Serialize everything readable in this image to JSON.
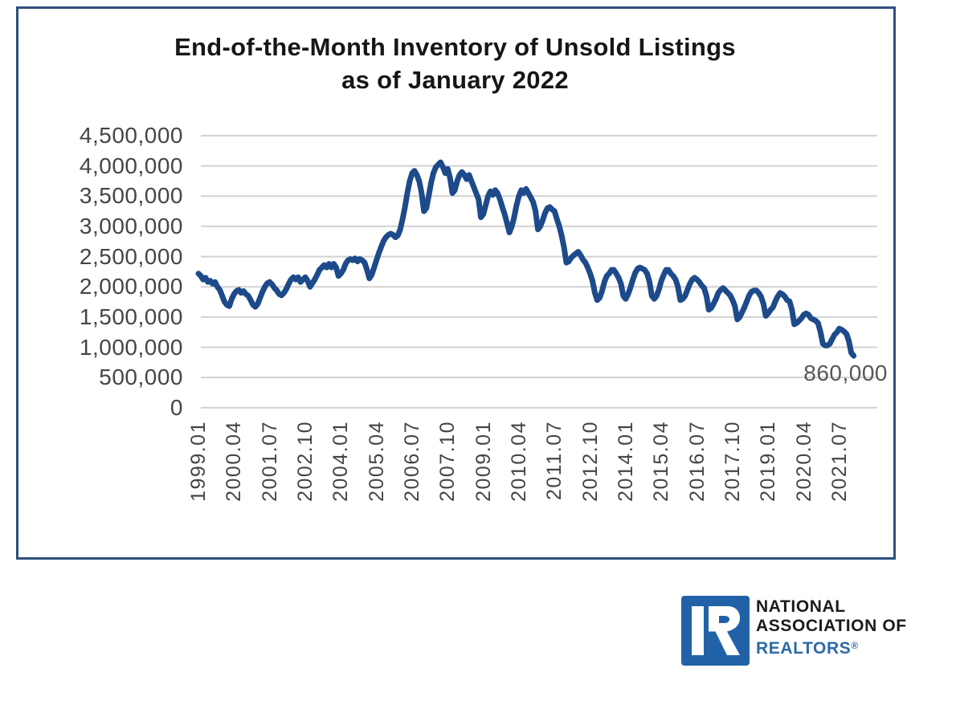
{
  "page": {
    "background": "#ffffff"
  },
  "chart_box": {
    "title_line1": "End-of-the-Month Inventory of Unsold Listings",
    "title_line2": "as of January 2022",
    "border_color": "#2d4f7f"
  },
  "annotation": {
    "text": "860,000",
    "color": "#565656"
  },
  "logo": {
    "line1": "NATIONAL",
    "line2": "ASSOCIATION OF",
    "line3": "REALTORS",
    "registered": "®",
    "square_color": "#2162a7",
    "realtors_color": "#2d6aa6"
  },
  "chart_data": {
    "type": "line",
    "title": "End-of-the-Month Inventory of Unsold Listings as of January 2022",
    "series_name": "End-of-month inventory of unsold listings",
    "x_start": "1999.01",
    "x_end": "2022.01",
    "x_interval": "monthly",
    "x_tick_labels": [
      "1999.01",
      "2000.04",
      "2001.07",
      "2002.10",
      "2004.01",
      "2005.04",
      "2006.07",
      "2007.10",
      "2009.01",
      "2010.04",
      "2011.07",
      "2012.10",
      "2014.01",
      "2015.04",
      "2016.07",
      "2017.10",
      "2019.01",
      "2020.04",
      "2021.07"
    ],
    "x_tick_interval_months": 15,
    "y_tick_labels": [
      "4,500,000",
      "4,000,000",
      "3,500,000",
      "3,000,000",
      "2,500,000",
      "2,000,000",
      "1,500,000",
      "1,000,000",
      "500,000",
      "0"
    ],
    "ylim": [
      0,
      4500000
    ],
    "grid": "horizontal",
    "legend": "none",
    "line_color": "#1d4a8a",
    "last_value_label": "860,000",
    "values": [
      2220000,
      2180000,
      2120000,
      2150000,
      2080000,
      2100000,
      2050000,
      2080000,
      2000000,
      1950000,
      1850000,
      1750000,
      1700000,
      1680000,
      1800000,
      1880000,
      1930000,
      1950000,
      1900000,
      1930000,
      1880000,
      1850000,
      1780000,
      1700000,
      1670000,
      1720000,
      1820000,
      1920000,
      2000000,
      2060000,
      2080000,
      2040000,
      1980000,
      1940000,
      1880000,
      1860000,
      1900000,
      1960000,
      2050000,
      2120000,
      2160000,
      2120000,
      2160000,
      2080000,
      2120000,
      2160000,
      2100000,
      2000000,
      2060000,
      2120000,
      2200000,
      2280000,
      2320000,
      2360000,
      2320000,
      2380000,
      2320000,
      2380000,
      2320000,
      2180000,
      2220000,
      2280000,
      2380000,
      2440000,
      2460000,
      2440000,
      2470000,
      2420000,
      2460000,
      2440000,
      2400000,
      2280000,
      2140000,
      2200000,
      2320000,
      2440000,
      2560000,
      2660000,
      2760000,
      2820000,
      2860000,
      2880000,
      2860000,
      2820000,
      2850000,
      2950000,
      3120000,
      3320000,
      3550000,
      3750000,
      3880000,
      3920000,
      3850000,
      3750000,
      3550000,
      3250000,
      3300000,
      3500000,
      3720000,
      3880000,
      3980000,
      4020000,
      4060000,
      3980000,
      3880000,
      3950000,
      3800000,
      3550000,
      3600000,
      3750000,
      3850000,
      3900000,
      3850000,
      3780000,
      3850000,
      3750000,
      3650000,
      3550000,
      3450000,
      3150000,
      3200000,
      3350000,
      3500000,
      3580000,
      3520000,
      3600000,
      3550000,
      3450000,
      3320000,
      3200000,
      3050000,
      2900000,
      3000000,
      3150000,
      3350000,
      3500000,
      3600000,
      3550000,
      3620000,
      3550000,
      3480000,
      3400000,
      3250000,
      2950000,
      3000000,
      3100000,
      3220000,
      3300000,
      3320000,
      3280000,
      3250000,
      3120000,
      3000000,
      2850000,
      2650000,
      2400000,
      2420000,
      2480000,
      2520000,
      2550000,
      2580000,
      2520000,
      2450000,
      2400000,
      2320000,
      2220000,
      2100000,
      1900000,
      1780000,
      1820000,
      1930000,
      2080000,
      2180000,
      2220000,
      2280000,
      2280000,
      2220000,
      2150000,
      2050000,
      1850000,
      1800000,
      1880000,
      1990000,
      2120000,
      2230000,
      2300000,
      2320000,
      2300000,
      2280000,
      2220000,
      2080000,
      1850000,
      1800000,
      1850000,
      1960000,
      2100000,
      2200000,
      2280000,
      2280000,
      2220000,
      2180000,
      2120000,
      2000000,
      1780000,
      1800000,
      1850000,
      1950000,
      2050000,
      2120000,
      2150000,
      2120000,
      2080000,
      2020000,
      1980000,
      1850000,
      1620000,
      1650000,
      1720000,
      1800000,
      1900000,
      1950000,
      1980000,
      1940000,
      1900000,
      1860000,
      1780000,
      1680000,
      1460000,
      1500000,
      1580000,
      1660000,
      1760000,
      1860000,
      1920000,
      1940000,
      1940000,
      1900000,
      1840000,
      1720000,
      1520000,
      1560000,
      1620000,
      1660000,
      1760000,
      1840000,
      1900000,
      1880000,
      1840000,
      1780000,
      1760000,
      1620000,
      1380000,
      1400000,
      1440000,
      1480000,
      1540000,
      1560000,
      1540000,
      1480000,
      1460000,
      1440000,
      1400000,
      1260000,
      1060000,
      1030000,
      1030000,
      1060000,
      1140000,
      1210000,
      1250000,
      1310000,
      1290000,
      1260000,
      1220000,
      1100000,
      910000,
      860000
    ]
  }
}
